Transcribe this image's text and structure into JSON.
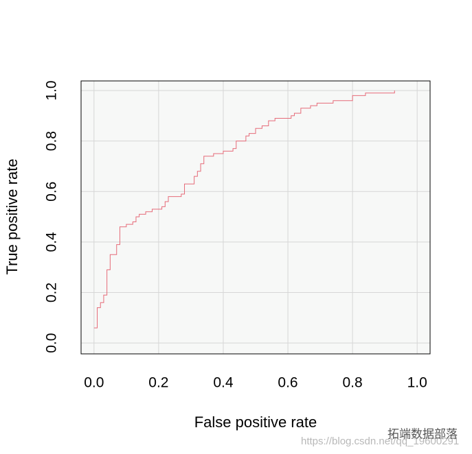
{
  "chart_data": {
    "type": "line",
    "x_label": "False positive rate",
    "y_label": "True positive rate",
    "xlim": [
      -0.04,
      1.04
    ],
    "ylim": [
      -0.043,
      1.038
    ],
    "xticks": [
      {
        "value": 0,
        "label": "0.0"
      },
      0.2,
      0.4,
      0.6,
      0.8,
      {
        "value": 1,
        "label": "1.0"
      }
    ],
    "yticks": [
      {
        "value": 0,
        "label": "0.0"
      },
      0.2,
      0.4,
      0.6,
      0.8,
      {
        "value": 1,
        "label": "1.0"
      }
    ],
    "grid": true,
    "series": [
      {
        "color": "#e66a78",
        "x": [
          0.0,
          0.01,
          0.02,
          0.03,
          0.04,
          0.05,
          0.07,
          0.08,
          0.1,
          0.12,
          0.13,
          0.14,
          0.16,
          0.18,
          0.21,
          0.22,
          0.23,
          0.27,
          0.28,
          0.31,
          0.32,
          0.33,
          0.34,
          0.37,
          0.4,
          0.43,
          0.44,
          0.47,
          0.48,
          0.5,
          0.52,
          0.54,
          0.56,
          0.61,
          0.62,
          0.64,
          0.67,
          0.69,
          0.74,
          0.8,
          0.84,
          0.93
        ],
        "values": [
          0.06,
          0.14,
          0.16,
          0.19,
          0.29,
          0.35,
          0.39,
          0.46,
          0.47,
          0.48,
          0.5,
          0.51,
          0.52,
          0.53,
          0.54,
          0.56,
          0.58,
          0.59,
          0.63,
          0.66,
          0.68,
          0.71,
          0.74,
          0.75,
          0.76,
          0.77,
          0.8,
          0.82,
          0.83,
          0.85,
          0.86,
          0.88,
          0.89,
          0.9,
          0.91,
          0.93,
          0.94,
          0.95,
          0.96,
          0.98,
          0.99,
          1.0
        ]
      }
    ],
    "watermark": [
      "https://blog.csdn.net/qq_19600291",
      "拓端数据部落"
    ]
  }
}
